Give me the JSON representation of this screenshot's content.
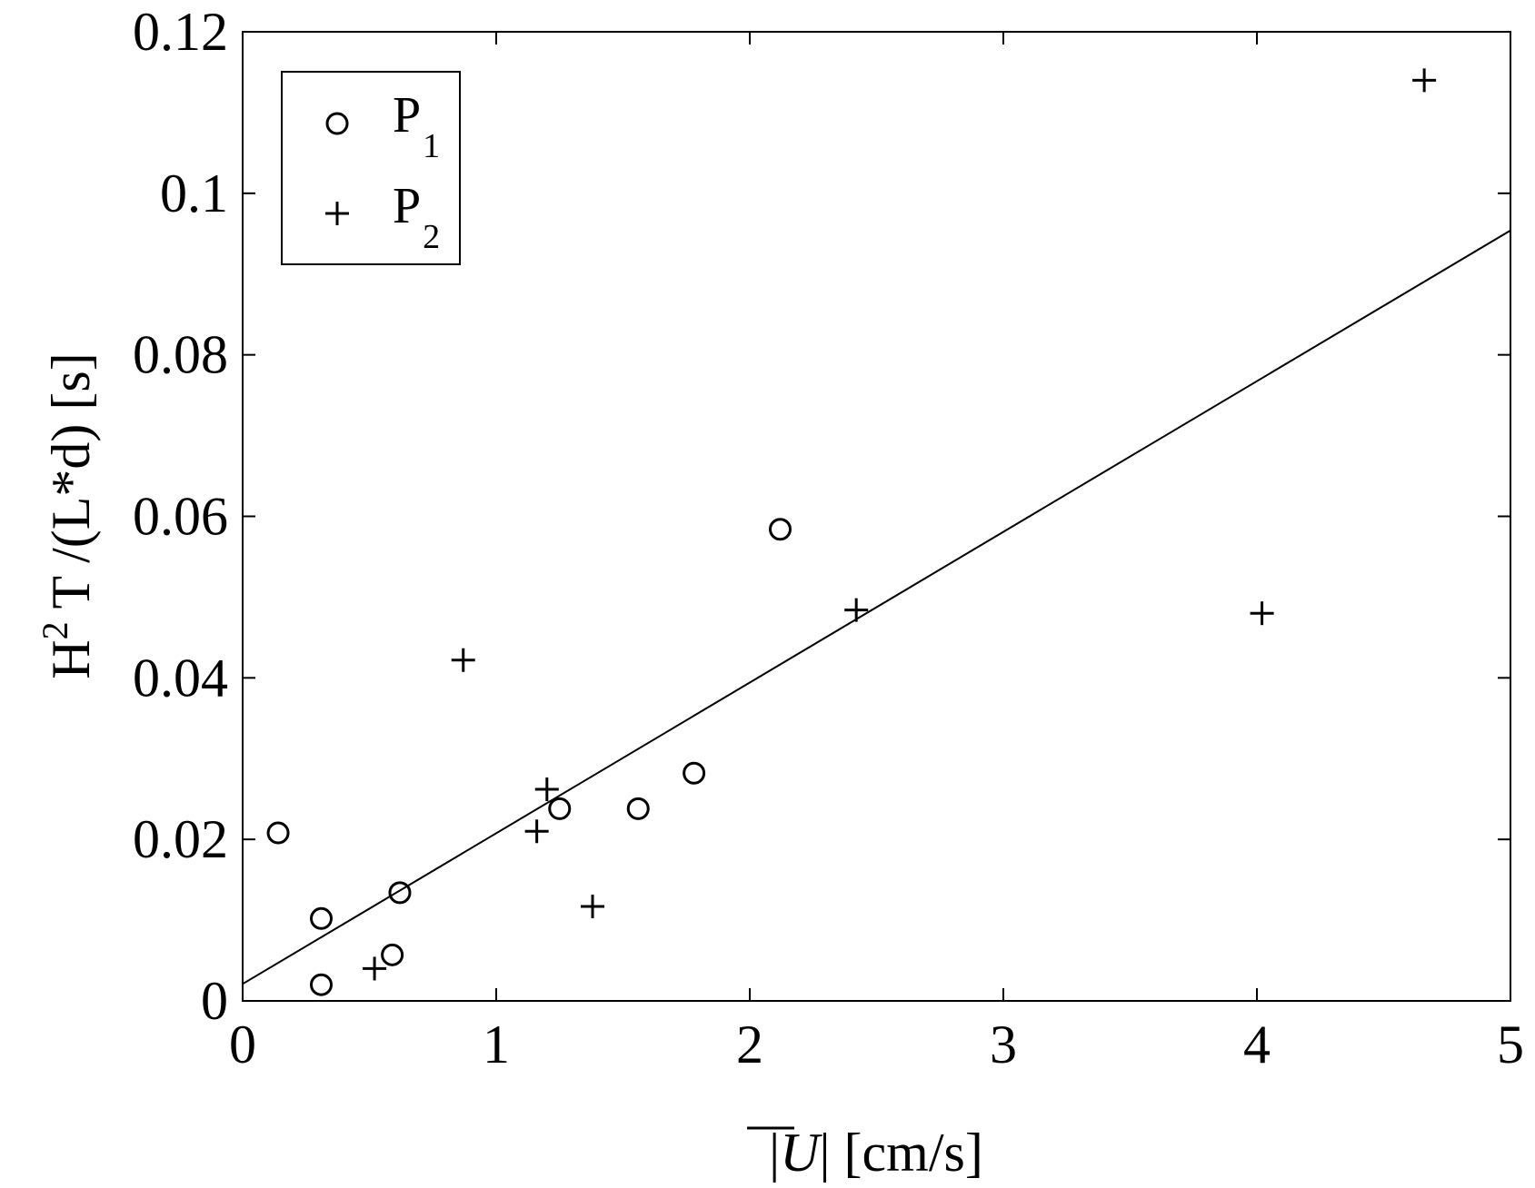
{
  "chart_data": {
    "type": "scatter",
    "xlabel": "|U| [cm/s]",
    "ylabel": "H2 T /(L*d) [s]",
    "xlim": [
      0,
      5
    ],
    "ylim": [
      0,
      0.12
    ],
    "xticks": [
      0,
      1,
      2,
      3,
      4,
      5
    ],
    "xtick_labels": [
      "0",
      "1",
      "2",
      "3",
      "4",
      "5"
    ],
    "yticks": [
      0,
      0.02,
      0.04,
      0.06,
      0.08,
      0.1,
      0.12
    ],
    "ytick_labels": [
      "0",
      "0.02",
      "0.04",
      "0.06",
      "0.08",
      "0.1",
      "0.12"
    ],
    "grid": false,
    "legend_position": "top-left",
    "series": [
      {
        "name": "P1",
        "marker": "circle",
        "points": [
          [
            0.14,
            0.0208
          ],
          [
            0.31,
            0.0102
          ],
          [
            0.31,
            0.002
          ],
          [
            0.59,
            0.0057
          ],
          [
            0.62,
            0.0134
          ],
          [
            1.25,
            0.0238
          ],
          [
            1.56,
            0.0238
          ],
          [
            1.78,
            0.0282
          ],
          [
            2.12,
            0.0584
          ]
        ]
      },
      {
        "name": "P2",
        "marker": "plus",
        "points": [
          [
            0.52,
            0.004
          ],
          [
            0.87,
            0.0422
          ],
          [
            1.16,
            0.021
          ],
          [
            1.2,
            0.0262
          ],
          [
            1.38,
            0.0117
          ],
          [
            2.42,
            0.0484
          ],
          [
            4.02,
            0.048
          ],
          [
            4.66,
            0.114
          ]
        ]
      },
      {
        "type": "line",
        "style": "fit",
        "x": [
          0,
          5
        ],
        "y": [
          0.0021,
          0.0954
        ]
      }
    ]
  },
  "colors": {
    "ink": "#000000",
    "background": "#ffffff"
  }
}
